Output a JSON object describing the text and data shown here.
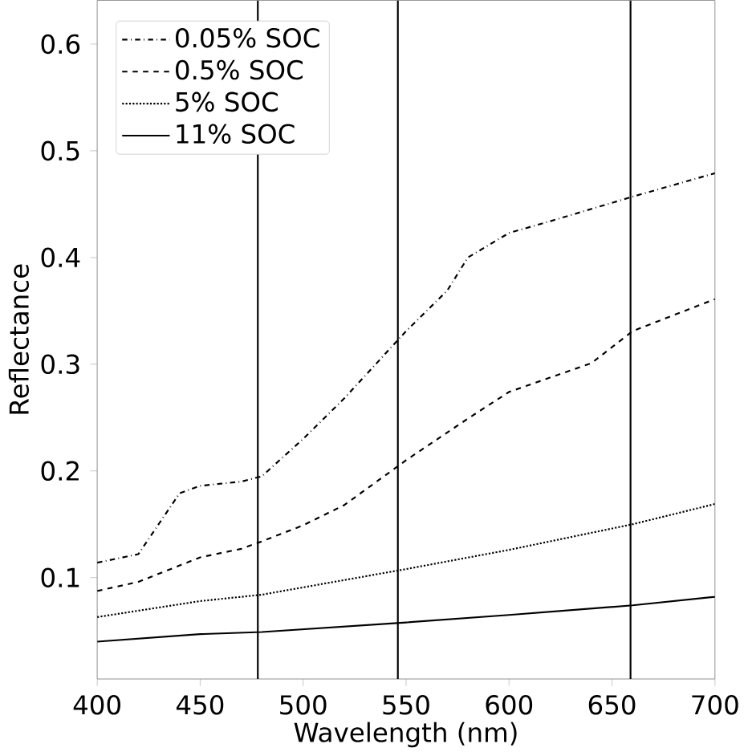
{
  "chart_data": {
    "type": "line",
    "xlabel": "Wavelength (nm)",
    "ylabel": "Reflectance",
    "xlim": [
      400,
      700
    ],
    "ylim": [
      0.005,
      0.641
    ],
    "xticks": [
      400,
      450,
      500,
      550,
      600,
      650,
      700
    ],
    "yticks": [
      0.1,
      0.2,
      0.3,
      0.4,
      0.5,
      0.6
    ],
    "legend": "top left",
    "grid": false,
    "series": [
      {
        "name": "0.05% SOC",
        "color": "#000000",
        "line_style": "dashdot",
        "x": [
          400,
          420,
          440,
          450,
          470,
          480,
          500,
          520,
          550,
          570,
          580,
          600,
          620,
          660,
          700
        ],
        "values": [
          0.114,
          0.122,
          0.179,
          0.186,
          0.19,
          0.195,
          0.23,
          0.268,
          0.331,
          0.369,
          0.4,
          0.423,
          0.434,
          0.457,
          0.479
        ]
      },
      {
        "name": "0.5% SOC",
        "color": "#000000",
        "line_style": "dashed",
        "x": [
          400,
          420,
          450,
          470,
          480,
          500,
          520,
          550,
          580,
          600,
          640,
          660,
          700
        ],
        "values": [
          0.0875,
          0.096,
          0.119,
          0.127,
          0.134,
          0.149,
          0.168,
          0.21,
          0.249,
          0.274,
          0.301,
          0.331,
          0.361
        ]
      },
      {
        "name": "5% SOC",
        "color": "#000000",
        "line_style": "dotted",
        "x": [
          400,
          450,
          480,
          550,
          600,
          660,
          700
        ],
        "values": [
          0.063,
          0.078,
          0.084,
          0.108,
          0.126,
          0.15,
          0.169
        ]
      },
      {
        "name": "11% SOC",
        "color": "#000000",
        "line_style": "solid",
        "x": [
          400,
          450,
          480,
          550,
          600,
          660,
          700
        ],
        "values": [
          0.04,
          0.047,
          0.049,
          0.058,
          0.065,
          0.074,
          0.082
        ]
      }
    ],
    "ref_lines": [
      {
        "axis": "x",
        "value": 478,
        "color": "#000000"
      },
      {
        "axis": "x",
        "value": 546,
        "color": "#000000"
      },
      {
        "axis": "x",
        "value": 659,
        "color": "#000000"
      }
    ]
  }
}
